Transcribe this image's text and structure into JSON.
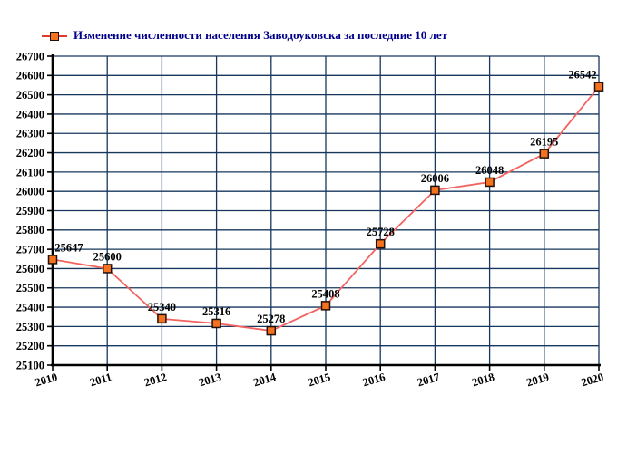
{
  "legend": {
    "label": "Изменение численности населения Заводоуковска за последние 10 лет"
  },
  "chart_data": {
    "type": "line",
    "title": "Изменение численности населения Заводоуковска за последние 10 лет",
    "categories": [
      "2010",
      "2011",
      "2012",
      "2013",
      "2014",
      "2015",
      "2016",
      "2017",
      "2018",
      "2019",
      "2020"
    ],
    "values": [
      25647,
      25600,
      25340,
      25316,
      25278,
      25408,
      25728,
      26006,
      26048,
      26195,
      26542
    ],
    "xlabel": "",
    "ylabel": "",
    "ylim": [
      25100,
      26700
    ],
    "ytick_step": 100,
    "grid": true,
    "legend_position": "top-left",
    "colors": {
      "line": "#f2635f",
      "marker_fill": "#f4711f",
      "marker_border": "#201008",
      "grid": "#17375e",
      "axis": "#000000",
      "tick_text": "#000000",
      "legend_text": "#00008b",
      "background": "#ffffff"
    }
  }
}
